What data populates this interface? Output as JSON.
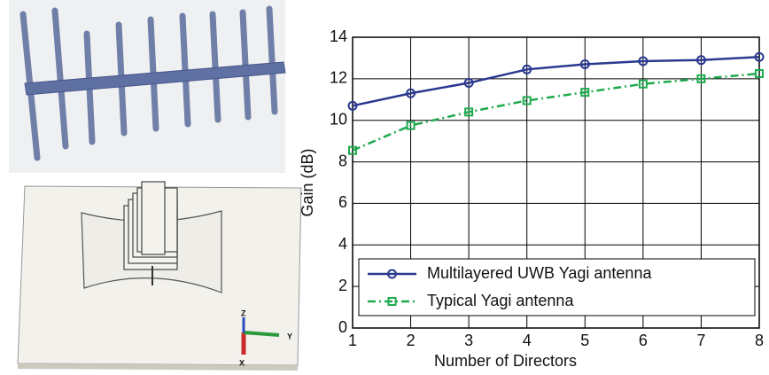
{
  "images": {
    "axis_labels": [
      "Z",
      "Y",
      "X"
    ]
  },
  "chart_data": {
    "type": "line",
    "x_label": "Number of Directors",
    "y_label": "Gain (dB)",
    "x": [
      1,
      2,
      3,
      4,
      5,
      6,
      7,
      8
    ],
    "xlim": [
      1,
      8
    ],
    "xticks": [
      1,
      2,
      3,
      4,
      5,
      6,
      7,
      8
    ],
    "ylim": [
      0,
      14
    ],
    "yticks": [
      0,
      2,
      4,
      6,
      8,
      10,
      12,
      14
    ],
    "grid": true,
    "legend": "lower left",
    "series": [
      {
        "name": "Multilayered UWB Yagi antenna",
        "color": "#2b3990",
        "marker": "circle",
        "linestyle": "solid",
        "values": [
          10.7,
          11.3,
          11.8,
          12.45,
          12.7,
          12.85,
          12.9,
          13.05
        ]
      },
      {
        "name": "Typical Yagi antenna",
        "color": "#1faa4f",
        "marker": "square",
        "linestyle": "dashdot",
        "values": [
          8.55,
          9.75,
          10.4,
          10.95,
          11.35,
          11.75,
          12.0,
          12.25
        ]
      }
    ]
  }
}
